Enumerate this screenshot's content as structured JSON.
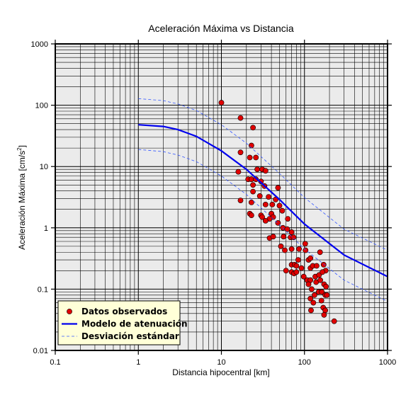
{
  "chart_data": {
    "type": "scatter",
    "title": "Aceleración Máxima vs Distancia",
    "xlabel": "Distancia hipocentral [km]",
    "ylabel": "Aceleración Máxima [cm/s²]",
    "ylabel_main": "Aceleración Máxima [cm/s",
    "ylabel_sup": "2",
    "ylabel_tail": "]",
    "xscale": "log",
    "yscale": "log",
    "xlim": [
      0.1,
      1000
    ],
    "ylim": [
      0.01,
      1000
    ],
    "xticks": [
      0.1,
      1,
      10,
      100,
      1000
    ],
    "xtick_labels": [
      "0.1",
      "1",
      "10",
      "100",
      "1000"
    ],
    "yticks": [
      0.01,
      0.1,
      1,
      10,
      100,
      1000
    ],
    "ytick_labels": [
      "0.01",
      "0.1",
      "1",
      "10",
      "100",
      "1000"
    ],
    "grid": true,
    "legend_position": "bottom-left",
    "legend": [
      {
        "label": "Datos observados",
        "kind": "marker",
        "color": "#e00000"
      },
      {
        "label": "Modelo de atenuación",
        "kind": "line",
        "color": "#0000ee"
      },
      {
        "label": "Desviación estándar",
        "kind": "dashed",
        "color": "#3355ff"
      }
    ],
    "series": [
      {
        "name": "Datos observados",
        "kind": "scatter",
        "color": "#e00000",
        "points": [
          [
            10,
            110
          ],
          [
            17,
            62
          ],
          [
            24,
            43
          ],
          [
            23,
            22
          ],
          [
            17,
            17
          ],
          [
            22,
            14
          ],
          [
            26,
            14
          ],
          [
            16,
            8.2
          ],
          [
            27,
            9
          ],
          [
            31,
            9
          ],
          [
            34,
            8.5
          ],
          [
            21,
            6.2
          ],
          [
            23,
            6.2
          ],
          [
            26,
            6.2
          ],
          [
            30,
            5.7
          ],
          [
            24,
            5
          ],
          [
            33,
            4.8
          ],
          [
            48,
            4.5
          ],
          [
            24,
            3.9
          ],
          [
            29,
            3.3
          ],
          [
            37,
            3.2
          ],
          [
            17,
            2.8
          ],
          [
            23,
            2.6
          ],
          [
            34,
            2.4
          ],
          [
            45,
            2.9
          ],
          [
            50,
            2.3
          ],
          [
            41,
            2.4
          ],
          [
            54,
            1.9
          ],
          [
            22,
            1.7
          ],
          [
            23,
            1.6
          ],
          [
            30,
            1.6
          ],
          [
            40,
            1.7
          ],
          [
            42,
            1.5
          ],
          [
            38,
            1.4
          ],
          [
            31,
            1.5
          ],
          [
            34,
            1.3
          ],
          [
            63,
            1.4
          ],
          [
            48,
            1.2
          ],
          [
            55,
            1.0
          ],
          [
            62,
            0.95
          ],
          [
            70,
            0.85
          ],
          [
            38,
            0.68
          ],
          [
            42,
            0.72
          ],
          [
            56,
            0.72
          ],
          [
            68,
            0.7
          ],
          [
            74,
            0.7
          ],
          [
            52,
            0.5
          ],
          [
            58,
            0.43
          ],
          [
            70,
            0.45
          ],
          [
            86,
            0.45
          ],
          [
            84,
            0.3
          ],
          [
            102,
            0.55
          ],
          [
            103,
            0.43
          ],
          [
            112,
            0.3
          ],
          [
            118,
            0.32
          ],
          [
            154,
            0.4
          ],
          [
            60,
            0.2
          ],
          [
            70,
            0.25
          ],
          [
            76,
            0.25
          ],
          [
            80,
            0.24
          ],
          [
            92,
            0.22
          ],
          [
            118,
            0.22
          ],
          [
            126,
            0.24
          ],
          [
            140,
            0.24
          ],
          [
            170,
            0.25
          ],
          [
            70,
            0.19
          ],
          [
            75,
            0.18
          ],
          [
            80,
            0.19
          ],
          [
            180,
            0.2
          ],
          [
            98,
            0.16
          ],
          [
            108,
            0.14
          ],
          [
            118,
            0.14
          ],
          [
            135,
            0.16
          ],
          [
            150,
            0.17
          ],
          [
            165,
            0.19
          ],
          [
            112,
            0.12
          ],
          [
            122,
            0.1
          ],
          [
            138,
            0.13
          ],
          [
            155,
            0.14
          ],
          [
            172,
            0.12
          ],
          [
            182,
            0.11
          ],
          [
            132,
            0.08
          ],
          [
            148,
            0.09
          ],
          [
            162,
            0.09
          ],
          [
            178,
            0.08
          ],
          [
            186,
            0.08
          ],
          [
            118,
            0.07
          ],
          [
            128,
            0.06
          ],
          [
            160,
            0.065
          ],
          [
            120,
            0.045
          ],
          [
            168,
            0.05
          ],
          [
            178,
            0.045
          ],
          [
            172,
            0.038
          ],
          [
            228,
            0.03
          ]
        ]
      },
      {
        "name": "Modelo de atenuación",
        "kind": "line",
        "color": "#0000ee",
        "points": [
          [
            1,
            48
          ],
          [
            2,
            45
          ],
          [
            3,
            40
          ],
          [
            5,
            31
          ],
          [
            10,
            18
          ],
          [
            20,
            9
          ],
          [
            50,
            2.9
          ],
          [
            100,
            1.15
          ],
          [
            300,
            0.36
          ],
          [
            1000,
            0.16
          ]
        ]
      },
      {
        "name": "Desviación estándar",
        "kind": "dashed",
        "color": "#3355ff",
        "points": [
          [
            1,
            128
          ],
          [
            2,
            119
          ],
          [
            3,
            105
          ],
          [
            5,
            82
          ],
          [
            10,
            48
          ],
          [
            20,
            24
          ],
          [
            50,
            7.7
          ],
          [
            100,
            3.1
          ],
          [
            300,
            0.95
          ],
          [
            1000,
            0.43
          ]
        ]
      },
      {
        "name": "Desviación estándar",
        "kind": "dashed",
        "color": "#3355ff",
        "points": [
          [
            1,
            19
          ],
          [
            2,
            17.5
          ],
          [
            3,
            15.4
          ],
          [
            5,
            12
          ],
          [
            10,
            7.0
          ],
          [
            20,
            3.5
          ],
          [
            50,
            1.12
          ],
          [
            100,
            0.45
          ],
          [
            300,
            0.14
          ],
          [
            1000,
            0.063
          ]
        ]
      }
    ]
  }
}
